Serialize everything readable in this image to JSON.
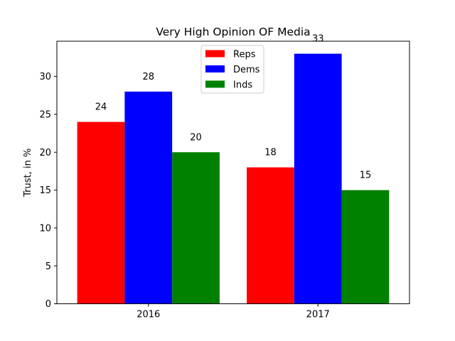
{
  "chart_data": {
    "type": "bar",
    "title": "Very High Opinion OF Media",
    "xlabel": "",
    "ylabel": "Trust, in %",
    "categories": [
      "2016",
      "2017"
    ],
    "series": [
      {
        "name": "Reps",
        "color": "#ff0000",
        "values": [
          24,
          18
        ]
      },
      {
        "name": "Dems",
        "color": "#0000ff",
        "values": [
          28,
          33
        ]
      },
      {
        "name": "Inds",
        "color": "#008000",
        "values": [
          20,
          15
        ]
      }
    ],
    "ylim": [
      0,
      34.65
    ],
    "yticks": [
      "0",
      "5",
      "10",
      "15",
      "20",
      "25",
      "30"
    ],
    "grid": false,
    "legend_position": "top-center",
    "show_bar_labels": true
  }
}
